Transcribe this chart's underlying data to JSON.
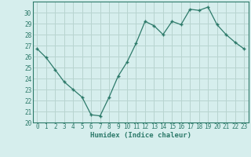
{
  "x": [
    0,
    1,
    2,
    3,
    4,
    5,
    6,
    7,
    8,
    9,
    10,
    11,
    12,
    13,
    14,
    15,
    16,
    17,
    18,
    19,
    20,
    21,
    22,
    23
  ],
  "y": [
    26.7,
    25.9,
    24.8,
    23.7,
    23.0,
    22.3,
    20.7,
    20.6,
    22.3,
    24.2,
    25.5,
    27.2,
    29.2,
    28.8,
    28.0,
    29.2,
    28.9,
    30.3,
    30.2,
    30.5,
    28.9,
    28.0,
    27.3,
    26.7
  ],
  "xlabel": "Humidex (Indice chaleur)",
  "ylim": [
    20,
    31
  ],
  "yticks": [
    20,
    21,
    22,
    23,
    24,
    25,
    26,
    27,
    28,
    29,
    30
  ],
  "xticks": [
    0,
    1,
    2,
    3,
    4,
    5,
    6,
    7,
    8,
    9,
    10,
    11,
    12,
    13,
    14,
    15,
    16,
    17,
    18,
    19,
    20,
    21,
    22,
    23
  ],
  "line_color": "#2d7a6a",
  "marker_color": "#2d7a6a",
  "bg_color": "#d6eeed",
  "grid_color": "#b8d4d0",
  "axis_color": "#2d7a6a",
  "tick_color": "#2d7a6a",
  "label_color": "#2d7a6a"
}
